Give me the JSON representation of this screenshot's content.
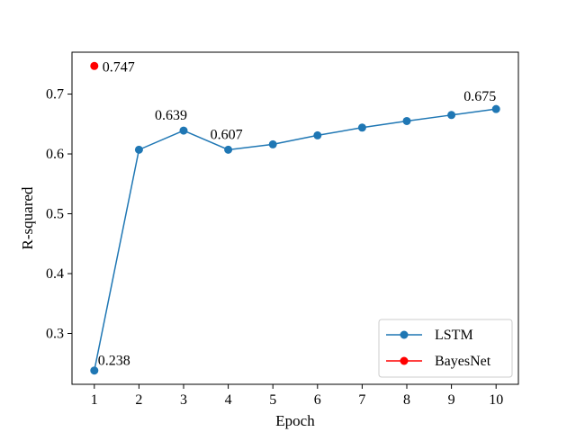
{
  "chart_data": {
    "type": "line",
    "title": "",
    "xlabel": "Epoch",
    "ylabel": "R-squared",
    "x": [
      1,
      2,
      3,
      4,
      5,
      6,
      7,
      8,
      9,
      10
    ],
    "xlim": [
      0.5,
      10.5
    ],
    "ylim": [
      0.215,
      0.77
    ],
    "xticks": [
      1,
      2,
      3,
      4,
      5,
      6,
      7,
      8,
      9,
      10
    ],
    "yticks": [
      0.3,
      0.4,
      0.5,
      0.6,
      0.7
    ],
    "grid": false,
    "legend_position": "bottom-right",
    "series": [
      {
        "name": "LSTM",
        "color": "#1f77b4",
        "x": [
          1,
          2,
          3,
          4,
          5,
          6,
          7,
          8,
          9,
          10
        ],
        "values": [
          0.238,
          0.607,
          0.639,
          0.607,
          0.616,
          0.631,
          0.644,
          0.655,
          0.665,
          0.675
        ]
      },
      {
        "name": "BayesNet",
        "color": "#ff0000",
        "x": [
          1
        ],
        "values": [
          0.747
        ]
      }
    ],
    "annotations": [
      {
        "series": "LSTM",
        "x": 1,
        "y": 0.238,
        "text": "0.238"
      },
      {
        "series": "LSTM",
        "x": 3,
        "y": 0.639,
        "text": "0.639"
      },
      {
        "series": "LSTM",
        "x": 4,
        "y": 0.607,
        "text": "0.607"
      },
      {
        "series": "LSTM",
        "x": 10,
        "y": 0.675,
        "text": "0.675"
      },
      {
        "series": "BayesNet",
        "x": 1,
        "y": 0.747,
        "text": "0.747"
      }
    ]
  }
}
